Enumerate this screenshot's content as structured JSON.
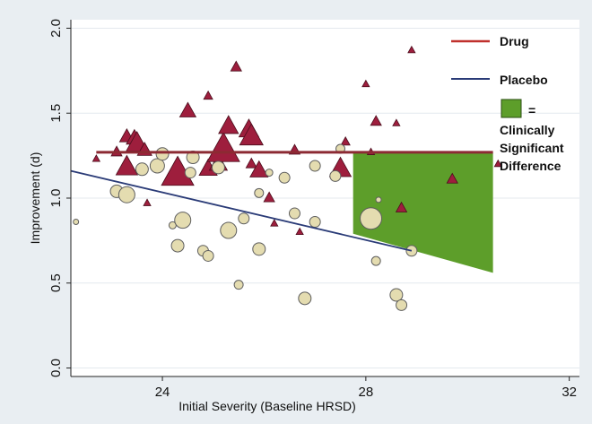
{
  "chart_data": {
    "type": "scatter",
    "title": "",
    "xlabel": "Initial Severity (Baseline HRSD)",
    "ylabel": "Improvement (d)",
    "xlim": [
      22.2,
      32.2
    ],
    "ylim": [
      -0.05,
      2.05
    ],
    "x_ticks": [
      24,
      28,
      32
    ],
    "y_ticks": [
      0.0,
      0.5,
      1.0,
      1.5,
      2.0
    ],
    "y_tick_labels": [
      "0.0",
      "0.5",
      "1.0",
      "1.5",
      "2.0"
    ],
    "grid": true,
    "legend_position": "top-right",
    "colors": {
      "background": "#e9eef2",
      "plot_area": "#ffffff",
      "drug_line": "#c0312d",
      "placebo_line": "#2a3b77",
      "drug_marker": "#9e1e3d",
      "placebo_marker": "#e4dcb0",
      "significant_area": "#5d9e2a"
    },
    "series": [
      {
        "name": "Drug",
        "marker": "triangle",
        "points": [
          {
            "x": 22.7,
            "y": 1.23,
            "s": 4
          },
          {
            "x": 23.1,
            "y": 1.27,
            "s": 6
          },
          {
            "x": 23.3,
            "y": 1.36,
            "s": 8
          },
          {
            "x": 23.45,
            "y": 1.35,
            "s": 9
          },
          {
            "x": 23.5,
            "y": 1.32,
            "s": 12
          },
          {
            "x": 23.3,
            "y": 1.18,
            "s": 12
          },
          {
            "x": 23.65,
            "y": 1.28,
            "s": 8
          },
          {
            "x": 23.7,
            "y": 0.97,
            "s": 4
          },
          {
            "x": 24.3,
            "y": 1.14,
            "s": 18
          },
          {
            "x": 24.5,
            "y": 1.51,
            "s": 9
          },
          {
            "x": 24.9,
            "y": 1.6,
            "s": 5
          },
          {
            "x": 24.9,
            "y": 1.17,
            "s": 10
          },
          {
            "x": 25.1,
            "y": 1.2,
            "s": 10
          },
          {
            "x": 25.2,
            "y": 1.28,
            "s": 18
          },
          {
            "x": 25.3,
            "y": 1.42,
            "s": 11
          },
          {
            "x": 25.45,
            "y": 1.77,
            "s": 6
          },
          {
            "x": 25.7,
            "y": 1.4,
            "s": 11
          },
          {
            "x": 25.75,
            "y": 1.36,
            "s": 13
          },
          {
            "x": 25.75,
            "y": 1.2,
            "s": 6
          },
          {
            "x": 25.9,
            "y": 1.16,
            "s": 10
          },
          {
            "x": 26.1,
            "y": 1.0,
            "s": 6
          },
          {
            "x": 26.2,
            "y": 0.85,
            "s": 4
          },
          {
            "x": 26.6,
            "y": 1.28,
            "s": 6
          },
          {
            "x": 26.7,
            "y": 0.8,
            "s": 4
          },
          {
            "x": 27.5,
            "y": 1.17,
            "s": 12
          },
          {
            "x": 27.6,
            "y": 1.33,
            "s": 5
          },
          {
            "x": 28.0,
            "y": 1.67,
            "s": 4
          },
          {
            "x": 28.1,
            "y": 1.27,
            "s": 4
          },
          {
            "x": 28.2,
            "y": 1.45,
            "s": 6
          },
          {
            "x": 28.6,
            "y": 1.44,
            "s": 4
          },
          {
            "x": 28.7,
            "y": 0.94,
            "s": 6
          },
          {
            "x": 28.9,
            "y": 1.87,
            "s": 4
          },
          {
            "x": 29.7,
            "y": 1.11,
            "s": 6
          },
          {
            "x": 30.6,
            "y": 1.2,
            "s": 4
          }
        ]
      },
      {
        "name": "Placebo",
        "marker": "circle",
        "points": [
          {
            "x": 22.3,
            "y": 0.86,
            "s": 3
          },
          {
            "x": 23.1,
            "y": 1.04,
            "s": 7
          },
          {
            "x": 23.3,
            "y": 1.02,
            "s": 9
          },
          {
            "x": 23.6,
            "y": 1.17,
            "s": 7
          },
          {
            "x": 23.9,
            "y": 1.19,
            "s": 8
          },
          {
            "x": 24.0,
            "y": 1.26,
            "s": 7
          },
          {
            "x": 24.2,
            "y": 0.84,
            "s": 4
          },
          {
            "x": 24.3,
            "y": 0.72,
            "s": 7
          },
          {
            "x": 24.4,
            "y": 0.87,
            "s": 9
          },
          {
            "x": 24.55,
            "y": 1.15,
            "s": 6
          },
          {
            "x": 24.6,
            "y": 1.24,
            "s": 7
          },
          {
            "x": 24.8,
            "y": 0.69,
            "s": 6
          },
          {
            "x": 24.9,
            "y": 0.66,
            "s": 6
          },
          {
            "x": 25.1,
            "y": 1.18,
            "s": 7
          },
          {
            "x": 25.3,
            "y": 0.81,
            "s": 9
          },
          {
            "x": 25.5,
            "y": 0.49,
            "s": 5
          },
          {
            "x": 25.6,
            "y": 0.88,
            "s": 6
          },
          {
            "x": 25.9,
            "y": 1.03,
            "s": 5
          },
          {
            "x": 25.9,
            "y": 0.7,
            "s": 7
          },
          {
            "x": 26.1,
            "y": 1.15,
            "s": 4
          },
          {
            "x": 26.4,
            "y": 1.12,
            "s": 6
          },
          {
            "x": 26.6,
            "y": 0.91,
            "s": 6
          },
          {
            "x": 26.8,
            "y": 0.41,
            "s": 7
          },
          {
            "x": 27.0,
            "y": 1.19,
            "s": 6
          },
          {
            "x": 27.0,
            "y": 0.86,
            "s": 6
          },
          {
            "x": 27.4,
            "y": 1.13,
            "s": 6
          },
          {
            "x": 27.5,
            "y": 1.29,
            "s": 5
          },
          {
            "x": 28.1,
            "y": 0.88,
            "s": 12
          },
          {
            "x": 28.2,
            "y": 0.63,
            "s": 5
          },
          {
            "x": 28.25,
            "y": 0.99,
            "s": 3
          },
          {
            "x": 28.6,
            "y": 0.43,
            "s": 7
          },
          {
            "x": 28.7,
            "y": 0.37,
            "s": 6
          },
          {
            "x": 28.9,
            "y": 0.69,
            "s": 6
          }
        ]
      }
    ],
    "fit_lines": [
      {
        "name": "Drug",
        "x": [
          22.7,
          30.5
        ],
        "y": [
          1.27,
          1.27
        ]
      },
      {
        "name": "Placebo",
        "x": [
          22.2,
          28.9
        ],
        "y": [
          1.16,
          0.69
        ]
      }
    ],
    "significant_area": {
      "x": [
        27.75,
        30.5
      ],
      "upper": [
        1.27,
        1.27
      ],
      "lower": [
        0.79,
        0.56
      ]
    },
    "legend": {
      "drug_label": "Drug",
      "placebo_label": "Placebo",
      "area_symbol": "=",
      "area_label": [
        "Clinically",
        "Significant",
        "Difference"
      ]
    }
  }
}
